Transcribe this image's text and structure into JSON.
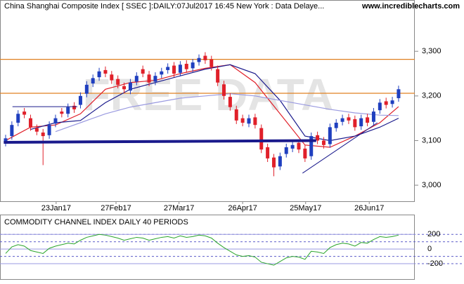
{
  "chart_data": {
    "type": "candlestick",
    "title": "China Shanghai Composite Index [ SSEC ]:DAILY:07Jul2017 16:45 New York : Data Delaye...",
    "site": "www.incrediblecharts.com",
    "watermark": "FREE DATA",
    "xlim": [
      -0.9,
      65.6
    ],
    "xticks": [
      {
        "value": 8.1,
        "label": "23Jan17"
      },
      {
        "value": 17.7,
        "label": "27Feb17"
      },
      {
        "value": 27.8,
        "label": "27Mar17"
      },
      {
        "value": 38,
        "label": "26Apr17"
      },
      {
        "value": 48.1,
        "label": "25May17"
      },
      {
        "value": 58.3,
        "label": "26Jun17"
      }
    ],
    "ylim": [
      2964,
      3415
    ],
    "yticks": [
      {
        "value": 3000,
        "label": "3,000"
      },
      {
        "value": 3100,
        "label": "3,100"
      },
      {
        "value": 3200,
        "label": "3,200"
      },
      {
        "value": 3300,
        "label": "3,300"
      }
    ],
    "up_color": "#1f3fbf",
    "down_color": "#e0202a",
    "open": [
      3095,
      3110,
      3140,
      3165,
      3150,
      3128,
      3118,
      3112,
      3138,
      3165,
      3160,
      3178,
      3180,
      3205,
      3228,
      3242,
      3258,
      3248,
      3238,
      3222,
      3212,
      3232,
      3260,
      3248,
      3232,
      3248,
      3258,
      3268,
      3252,
      3272,
      3262,
      3276,
      3290,
      3282,
      3260,
      3226,
      3198,
      3170,
      3150,
      3138,
      3152,
      3128,
      3085,
      3062,
      3042,
      3070,
      3082,
      3095,
      3082,
      3065,
      3112,
      3100,
      3092,
      3128,
      3142,
      3152,
      3148,
      3132,
      3152,
      3142,
      3168,
      3188,
      3182,
      3195
    ],
    "high": [
      3113,
      3143,
      3168,
      3173,
      3158,
      3136,
      3126,
      3143,
      3158,
      3173,
      3183,
      3186,
      3208,
      3233,
      3248,
      3263,
      3266,
      3256,
      3246,
      3230,
      3238,
      3253,
      3268,
      3256,
      3253,
      3263,
      3273,
      3276,
      3278,
      3280,
      3283,
      3293,
      3298,
      3290,
      3268,
      3234,
      3206,
      3178,
      3158,
      3158,
      3160,
      3136,
      3093,
      3070,
      3073,
      3093,
      3098,
      3103,
      3090,
      3118,
      3120,
      3108,
      3138,
      3148,
      3158,
      3160,
      3156,
      3158,
      3160,
      3173,
      3193,
      3196,
      3198,
      3223
    ],
    "low": [
      3087,
      3102,
      3132,
      3150,
      3122,
      3112,
      3045,
      3104,
      3130,
      3152,
      3152,
      3162,
      3172,
      3197,
      3220,
      3234,
      3242,
      3227,
      3217,
      3207,
      3204,
      3224,
      3242,
      3222,
      3224,
      3240,
      3250,
      3242,
      3244,
      3252,
      3254,
      3268,
      3272,
      3257,
      3222,
      3192,
      3167,
      3137,
      3132,
      3130,
      3127,
      3072,
      3052,
      3020,
      3034,
      3062,
      3074,
      3072,
      3052,
      3057,
      3092,
      3082,
      3084,
      3120,
      3134,
      3137,
      3122,
      3124,
      3132,
      3134,
      3160,
      3172,
      3174,
      3187
    ],
    "close": [
      3105,
      3135,
      3160,
      3158,
      3130,
      3120,
      3110,
      3135,
      3150,
      3160,
      3175,
      3170,
      3200,
      3225,
      3240,
      3255,
      3250,
      3235,
      3225,
      3215,
      3230,
      3245,
      3250,
      3230,
      3245,
      3255,
      3265,
      3250,
      3270,
      3260,
      3275,
      3285,
      3280,
      3265,
      3230,
      3200,
      3175,
      3145,
      3140,
      3150,
      3135,
      3080,
      3060,
      3040,
      3065,
      3085,
      3090,
      3080,
      3060,
      3110,
      3100,
      3090,
      3130,
      3140,
      3150,
      3145,
      3130,
      3150,
      3140,
      3165,
      3185,
      3180,
      3190,
      3215
    ],
    "series": [
      {
        "color": "#e0202a",
        "x": [
          0,
          4,
          8,
          12,
          16,
          20,
          24,
          28,
          32,
          36,
          40,
          44,
          48,
          52,
          56,
          60,
          63
        ],
        "values": [
          3100,
          3130,
          3135,
          3160,
          3215,
          3230,
          3235,
          3250,
          3262,
          3270,
          3230,
          3160,
          3090,
          3085,
          3110,
          3140,
          3176
        ]
      },
      {
        "color": "#1a1a8c",
        "x": [
          4,
          8,
          12,
          16,
          20,
          24,
          28,
          32,
          36,
          40,
          44,
          48,
          52,
          56,
          60,
          63
        ],
        "values": [
          3125,
          3140,
          3145,
          3185,
          3215,
          3230,
          3245,
          3260,
          3270,
          3250,
          3190,
          3110,
          3100,
          3110,
          3130,
          3150
        ]
      },
      {
        "color": "#9a9ae0",
        "x": [
          8,
          12,
          16,
          20,
          24,
          28,
          32,
          36,
          40,
          44,
          48,
          52,
          56,
          60,
          63
        ],
        "values": [
          3120,
          3140,
          3160,
          3175,
          3185,
          3195,
          3200,
          3205,
          3200,
          3190,
          3180,
          3170,
          3162,
          3157,
          3156
        ]
      }
    ],
    "hlines": [
      {
        "value": 3282,
        "color": "#e08020"
      },
      {
        "value": 3206,
        "color": "#e08020"
      }
    ],
    "trendlines": [
      {
        "x": [
          -0.3,
          49.8
        ],
        "y": [
          3096,
          3100
        ],
        "color": "#1a1a8c",
        "width": 4
      },
      {
        "x": [
          47.6,
          59.6
        ],
        "y": [
          3027,
          3140
        ],
        "color": "#1a1a8c",
        "width": 1
      },
      {
        "x": [
          1.1,
          11.5
        ],
        "y": [
          3176,
          3176
        ],
        "color": "#1a1a8c",
        "width": 1
      }
    ],
    "indicator": {
      "title": "COMMODITY CHANNEL INDEX DAILY 40 PERIODS",
      "color": "#2aa52a",
      "ylim": [
        -410,
        461
      ],
      "yticks": [
        200,
        0,
        -200
      ],
      "levels": [
        200,
        100,
        -100,
        -200
      ],
      "values": [
        -60,
        30,
        60,
        40,
        -20,
        -40,
        -60,
        10,
        40,
        60,
        80,
        70,
        120,
        160,
        180,
        200,
        190,
        170,
        150,
        120,
        140,
        160,
        150,
        120,
        140,
        160,
        170,
        150,
        180,
        160,
        170,
        190,
        180,
        150,
        80,
        20,
        -30,
        -80,
        -100,
        -90,
        -110,
        -180,
        -200,
        -220,
        -170,
        -120,
        -100,
        -110,
        -140,
        -30,
        -40,
        -60,
        20,
        60,
        80,
        70,
        40,
        90,
        80,
        130,
        170,
        160,
        170,
        190
      ]
    }
  }
}
